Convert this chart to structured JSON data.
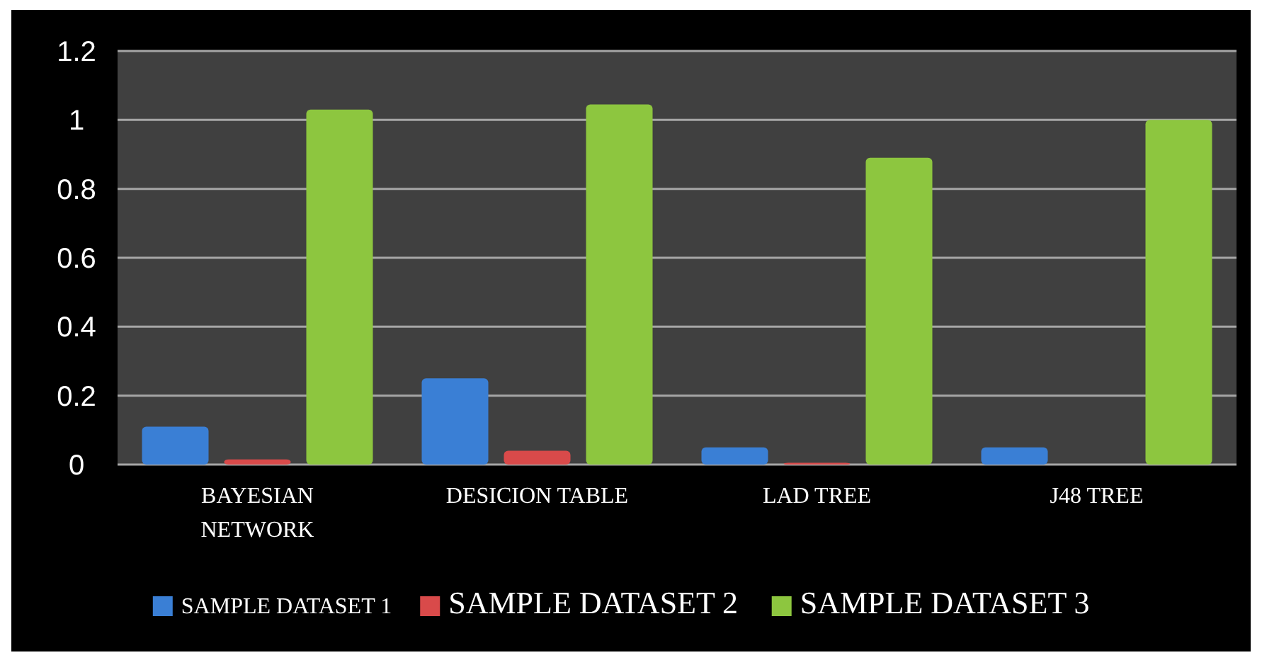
{
  "chart_data": {
    "type": "bar",
    "categories": [
      "BAYESIAN NETWORK",
      "DESICION TABLE",
      "LAD TREE",
      "J48 TREE"
    ],
    "series": [
      {
        "name": "SAMPLE DATASET 1",
        "color": "#3a7fd5",
        "values": [
          0.11,
          0.25,
          0.05,
          0.05
        ]
      },
      {
        "name": "SAMPLE DATASET 2",
        "color": "#d94a4a",
        "values": [
          0.015,
          0.04,
          0.005,
          0
        ]
      },
      {
        "name": "SAMPLE DATASET 3",
        "color": "#8dc63f",
        "values": [
          1.03,
          1.045,
          0.89,
          1.0
        ]
      }
    ],
    "ylim": [
      0,
      1.2
    ],
    "yticks": [
      0,
      0.2,
      0.4,
      0.6,
      0.8,
      1,
      1.2
    ],
    "grid": "y",
    "legend": "bottom"
  }
}
